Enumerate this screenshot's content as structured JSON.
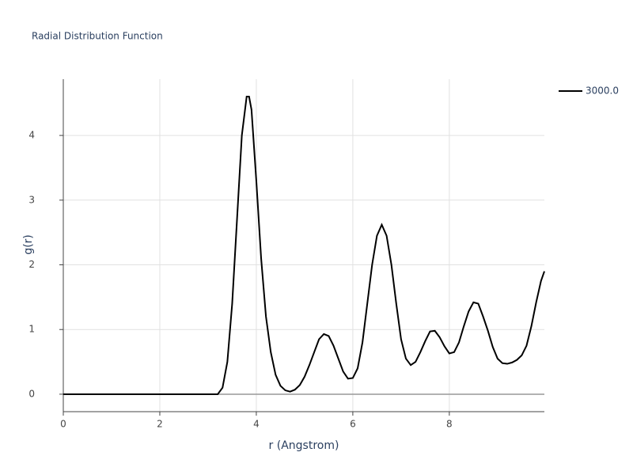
{
  "chart_data": {
    "type": "line",
    "title": "Radial Distribution Function",
    "x_label": "r (Angstrom)",
    "y_label": "g(r)",
    "x": [
      0,
      1,
      2,
      3,
      3.2,
      3.3,
      3.4,
      3.5,
      3.6,
      3.7,
      3.8,
      3.85,
      3.9,
      4.0,
      4.1,
      4.2,
      4.3,
      4.4,
      4.5,
      4.6,
      4.7,
      4.8,
      4.9,
      5.0,
      5.1,
      5.2,
      5.3,
      5.4,
      5.5,
      5.6,
      5.7,
      5.8,
      5.9,
      6.0,
      6.1,
      6.2,
      6.3,
      6.4,
      6.5,
      6.6,
      6.7,
      6.8,
      6.9,
      7.0,
      7.1,
      7.2,
      7.3,
      7.4,
      7.5,
      7.6,
      7.7,
      7.8,
      7.9,
      8.0,
      8.1,
      8.2,
      8.3,
      8.4,
      8.5,
      8.6,
      8.7,
      8.8,
      8.9,
      9.0,
      9.1,
      9.2,
      9.3,
      9.4,
      9.5,
      9.6,
      9.7,
      9.8,
      9.9,
      9.97
    ],
    "series": [
      {
        "name": "3000.0",
        "color": "#000000",
        "values": [
          0,
          0,
          0,
          0,
          0,
          0.1,
          0.5,
          1.4,
          2.7,
          4.0,
          4.6,
          4.6,
          4.4,
          3.3,
          2.1,
          1.2,
          0.65,
          0.3,
          0.13,
          0.06,
          0.04,
          0.07,
          0.14,
          0.27,
          0.45,
          0.65,
          0.85,
          0.93,
          0.9,
          0.75,
          0.55,
          0.35,
          0.24,
          0.25,
          0.4,
          0.8,
          1.4,
          2.0,
          2.45,
          2.62,
          2.45,
          2.0,
          1.4,
          0.85,
          0.55,
          0.45,
          0.5,
          0.65,
          0.82,
          0.97,
          0.98,
          0.88,
          0.74,
          0.63,
          0.65,
          0.8,
          1.05,
          1.28,
          1.42,
          1.4,
          1.2,
          0.98,
          0.73,
          0.55,
          0.48,
          0.47,
          0.49,
          0.53,
          0.6,
          0.75,
          1.05,
          1.42,
          1.75,
          1.9
        ]
      }
    ],
    "xlim": [
      0,
      9.97
    ],
    "ylim": [
      -0.27,
      4.87
    ],
    "xticks": [
      0,
      2,
      4,
      6,
      8
    ],
    "yticks": [
      0,
      1,
      2,
      3,
      4
    ],
    "grid": true
  }
}
